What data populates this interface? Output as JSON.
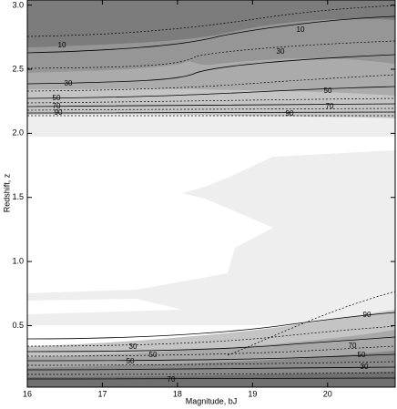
{
  "chart_data": {
    "type": "contour",
    "x_label": "Magnitude, bJ",
    "y_label": "Redshift, z",
    "xlim": [
      16,
      20.9
    ],
    "xticks": [
      16,
      17,
      18,
      19,
      20
    ],
    "ylim": [
      0.02,
      3.04
    ],
    "yticks": [
      0.5,
      {
        "value": 1,
        "label": "1.0"
      },
      1.5,
      {
        "value": 2,
        "label": "2.0"
      },
      2.5,
      {
        "value": 3,
        "label": "3.0"
      }
    ],
    "contour_levels": [
      10,
      30,
      50,
      70,
      90
    ]
  }
}
